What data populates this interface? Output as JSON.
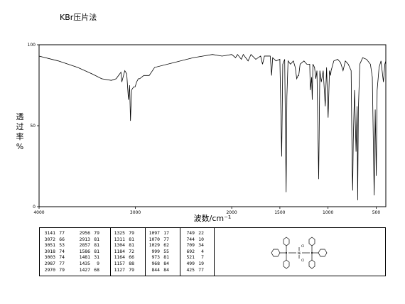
{
  "title": "KBr压片法",
  "chart_data": {
    "type": "line",
    "title": "KBr压片法",
    "xlabel": "波数/cm⁻¹",
    "ylabel": "透过率%",
    "ylabel_chars": [
      "透",
      "过",
      "率",
      "%"
    ],
    "xlim": [
      4000,
      400
    ],
    "ylim": [
      0,
      100
    ],
    "x_ticks": [
      4000,
      3000,
      2000,
      1500,
      1000,
      500
    ],
    "y_ticks": [
      0,
      50,
      100
    ],
    "grid": false,
    "series": [
      {
        "values_xy": [
          [
            4000,
            93
          ],
          [
            3800,
            90
          ],
          [
            3600,
            86
          ],
          [
            3450,
            82
          ],
          [
            3350,
            79
          ],
          [
            3250,
            78
          ],
          [
            3200,
            79
          ],
          [
            3150,
            83
          ],
          [
            3141,
            77
          ],
          [
            3110,
            84
          ],
          [
            3090,
            82
          ],
          [
            3072,
            66
          ],
          [
            3060,
            75
          ],
          [
            3051,
            53
          ],
          [
            3040,
            72
          ],
          [
            3018,
            74
          ],
          [
            3003,
            74
          ],
          [
            2987,
            77
          ],
          [
            2970,
            79
          ],
          [
            2956,
            79
          ],
          [
            2913,
            81
          ],
          [
            2857,
            81
          ],
          [
            2800,
            86
          ],
          [
            2600,
            89
          ],
          [
            2400,
            92
          ],
          [
            2300,
            93
          ],
          [
            2200,
            94
          ],
          [
            2100,
            93
          ],
          [
            2000,
            94
          ],
          [
            1960,
            92
          ],
          [
            1940,
            94
          ],
          [
            1900,
            91
          ],
          [
            1880,
            94
          ],
          [
            1830,
            90
          ],
          [
            1800,
            94
          ],
          [
            1750,
            91
          ],
          [
            1700,
            93
          ],
          [
            1680,
            88
          ],
          [
            1660,
            93
          ],
          [
            1600,
            93
          ],
          [
            1586,
            81
          ],
          [
            1575,
            92
          ],
          [
            1540,
            90
          ],
          [
            1500,
            91
          ],
          [
            1481,
            31
          ],
          [
            1470,
            88
          ],
          [
            1450,
            91
          ],
          [
            1435,
            9
          ],
          [
            1427,
            68
          ],
          [
            1415,
            90
          ],
          [
            1390,
            88
          ],
          [
            1360,
            90
          ],
          [
            1340,
            86
          ],
          [
            1325,
            79
          ],
          [
            1311,
            81
          ],
          [
            1304,
            81
          ],
          [
            1290,
            88
          ],
          [
            1250,
            90
          ],
          [
            1220,
            88
          ],
          [
            1190,
            88
          ],
          [
            1184,
            72
          ],
          [
            1170,
            80
          ],
          [
            1164,
            66
          ],
          [
            1157,
            88
          ],
          [
            1140,
            86
          ],
          [
            1127,
            79
          ],
          [
            1115,
            84
          ],
          [
            1097,
            17
          ],
          [
            1085,
            84
          ],
          [
            1070,
            77
          ],
          [
            1050,
            84
          ],
          [
            1029,
            62
          ],
          [
            1015,
            86
          ],
          [
            999,
            55
          ],
          [
            985,
            84
          ],
          [
            973,
            81
          ],
          [
            968,
            84
          ],
          [
            940,
            90
          ],
          [
            900,
            91
          ],
          [
            870,
            89
          ],
          [
            844,
            84
          ],
          [
            820,
            90
          ],
          [
            790,
            88
          ],
          [
            760,
            84
          ],
          [
            749,
            22
          ],
          [
            744,
            10
          ],
          [
            738,
            40
          ],
          [
            725,
            72
          ],
          [
            709,
            34
          ],
          [
            698,
            62
          ],
          [
            692,
            4
          ],
          [
            685,
            60
          ],
          [
            670,
            88
          ],
          [
            640,
            92
          ],
          [
            600,
            91
          ],
          [
            560,
            88
          ],
          [
            540,
            80
          ],
          [
            521,
            7
          ],
          [
            510,
            60
          ],
          [
            499,
            19
          ],
          [
            490,
            72
          ],
          [
            470,
            86
          ],
          [
            450,
            90
          ],
          [
            425,
            77
          ],
          [
            410,
            88
          ],
          [
            400,
            90
          ]
        ]
      }
    ]
  },
  "peak_table": {
    "columns": [
      [
        [
          "3141",
          "77"
        ],
        [
          "3072",
          "66"
        ],
        [
          "3051",
          "53"
        ],
        [
          "3018",
          "74"
        ],
        [
          "3003",
          "74"
        ],
        [
          "2987",
          "77"
        ],
        [
          "2970",
          "79"
        ]
      ],
      [
        [
          "2956",
          "79"
        ],
        [
          "2913",
          "81"
        ],
        [
          "2857",
          "81"
        ],
        [
          "1586",
          "81"
        ],
        [
          "1481",
          "31"
        ],
        [
          "1435",
          "9"
        ],
        [
          "1427",
          "68"
        ]
      ],
      [
        [
          "1325",
          "79"
        ],
        [
          "1311",
          "81"
        ],
        [
          "1304",
          "81"
        ],
        [
          "1184",
          "72"
        ],
        [
          "1164",
          "66"
        ],
        [
          "1157",
          "88"
        ],
        [
          "1127",
          "79"
        ]
      ],
      [
        [
          "1097",
          "17"
        ],
        [
          "1070",
          "77"
        ],
        [
          "1029",
          "62"
        ],
        [
          "999",
          "55"
        ],
        [
          "973",
          "81"
        ],
        [
          "968",
          "84"
        ],
        [
          "844",
          "84"
        ]
      ],
      [
        [
          "749",
          "22"
        ],
        [
          "744",
          "10"
        ],
        [
          "709",
          "34"
        ],
        [
          "692",
          "4"
        ],
        [
          "521",
          "7"
        ],
        [
          "499",
          "19"
        ],
        [
          "425",
          "77"
        ]
      ]
    ]
  },
  "structure": {
    "atoms": [
      "Ni",
      "Cl",
      "Cl"
    ]
  },
  "colors": {
    "line": "#000000",
    "frame": "#000000"
  }
}
